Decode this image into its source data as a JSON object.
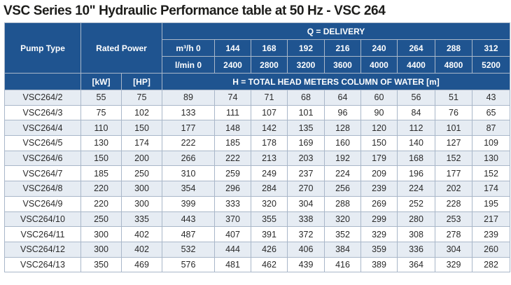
{
  "title": "VSC Series 10\" Hydraulic Performance table at 50 Hz - VSC 264",
  "header": {
    "pump_type": "Pump Type",
    "rated_power": "Rated Power",
    "delivery": "Q = DELIVERY",
    "m3h_label": "m³/h 0",
    "lmin_label": "l/min 0",
    "m3h_values": [
      "144",
      "168",
      "192",
      "216",
      "240",
      "264",
      "288",
      "312"
    ],
    "lmin_values": [
      "2400",
      "2800",
      "3200",
      "3600",
      "4000",
      "4400",
      "4800",
      "5200"
    ],
    "kw": "[kW]",
    "hp": "[HP]",
    "head": "H = TOTAL HEAD METERS COLUMN OF WATER [m]"
  },
  "rows": [
    {
      "type": "VSC264/2",
      "kw": "55",
      "hp": "75",
      "heads": [
        "89",
        "74",
        "71",
        "68",
        "64",
        "60",
        "56",
        "51",
        "43"
      ]
    },
    {
      "type": "VSC264/3",
      "kw": "75",
      "hp": "102",
      "heads": [
        "133",
        "111",
        "107",
        "101",
        "96",
        "90",
        "84",
        "76",
        "65"
      ]
    },
    {
      "type": "VSC264/4",
      "kw": "110",
      "hp": "150",
      "heads": [
        "177",
        "148",
        "142",
        "135",
        "128",
        "120",
        "112",
        "101",
        "87"
      ]
    },
    {
      "type": "VSC264/5",
      "kw": "130",
      "hp": "174",
      "heads": [
        "222",
        "185",
        "178",
        "169",
        "160",
        "150",
        "140",
        "127",
        "109"
      ]
    },
    {
      "type": "VSC264/6",
      "kw": "150",
      "hp": "200",
      "heads": [
        "266",
        "222",
        "213",
        "203",
        "192",
        "179",
        "168",
        "152",
        "130"
      ]
    },
    {
      "type": "VSC264/7",
      "kw": "185",
      "hp": "250",
      "heads": [
        "310",
        "259",
        "249",
        "237",
        "224",
        "209",
        "196",
        "177",
        "152"
      ]
    },
    {
      "type": "VSC264/8",
      "kw": "220",
      "hp": "300",
      "heads": [
        "354",
        "296",
        "284",
        "270",
        "256",
        "239",
        "224",
        "202",
        "174"
      ]
    },
    {
      "type": "VSC264/9",
      "kw": "220",
      "hp": "300",
      "heads": [
        "399",
        "333",
        "320",
        "304",
        "288",
        "269",
        "252",
        "228",
        "195"
      ]
    },
    {
      "type": "VSC264/10",
      "kw": "250",
      "hp": "335",
      "heads": [
        "443",
        "370",
        "355",
        "338",
        "320",
        "299",
        "280",
        "253",
        "217"
      ]
    },
    {
      "type": "VSC264/11",
      "kw": "300",
      "hp": "402",
      "heads": [
        "487",
        "407",
        "391",
        "372",
        "352",
        "329",
        "308",
        "278",
        "239"
      ]
    },
    {
      "type": "VSC264/12",
      "kw": "300",
      "hp": "402",
      "heads": [
        "532",
        "444",
        "426",
        "406",
        "384",
        "359",
        "336",
        "304",
        "260"
      ]
    },
    {
      "type": "VSC264/13",
      "kw": "350",
      "hp": "469",
      "heads": [
        "576",
        "481",
        "462",
        "439",
        "416",
        "389",
        "364",
        "329",
        "282"
      ]
    }
  ],
  "colors": {
    "header_bg": "#1f5490",
    "stripe": "#e6ecf3",
    "border": "#a9b7c9"
  }
}
